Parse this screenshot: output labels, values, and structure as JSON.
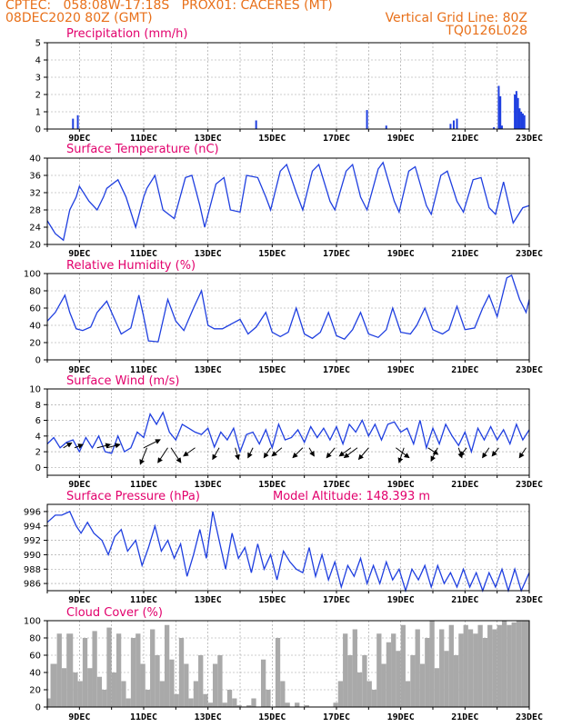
{
  "header": {
    "line1_left": "CPTEC:   058:08W-17:18S   PROX01: CACERES (MT)",
    "line2_left": "08DEC2020 80Z (GMT)",
    "line2_right": "Vertical Grid Line: 80Z",
    "line3_right": "TQ0126L028",
    "color": "#e8701a"
  },
  "model_altitude": "Model Altitude: 148.393 m",
  "colors": {
    "title": "#e2006c",
    "line": "#1f3fe0",
    "bar": "#1f3fe0",
    "cloud": "#a9a9a9",
    "arrow": "#000000",
    "grid": "#999999"
  },
  "x_axis": {
    "start_day": 8.0,
    "end_day": 23.0,
    "tick_days": [
      9,
      11,
      13,
      15,
      17,
      19,
      21,
      23
    ],
    "tick_labels": [
      "9DEC",
      "11DEC",
      "13DEC",
      "15DEC",
      "17DEC",
      "19DEC",
      "21DEC",
      "23DEC"
    ]
  },
  "chart_data": [
    {
      "id": "precip",
      "type": "bar",
      "title": "Precipitation (mm/h)",
      "ylim": [
        0,
        5
      ],
      "yticks": [
        0,
        1,
        2,
        3,
        4,
        5
      ],
      "grid": true,
      "x": [
        8.8,
        8.95,
        14.5,
        17.95,
        18.55,
        20.55,
        20.65,
        20.75,
        21.9,
        22.05,
        22.1,
        22.15,
        22.55,
        22.6,
        22.65,
        22.7,
        22.75,
        22.8,
        22.85
      ],
      "values": [
        0.6,
        0.8,
        0.5,
        1.1,
        0.2,
        0.3,
        0.5,
        0.6,
        0.1,
        2.5,
        1.9,
        0.2,
        2.0,
        2.2,
        1.8,
        1.2,
        1.0,
        0.9,
        0.8
      ]
    },
    {
      "id": "temp",
      "type": "line",
      "title": "Surface Temperature (nC)",
      "ylim": [
        20,
        40
      ],
      "yticks": [
        20,
        24,
        28,
        32,
        36,
        40
      ],
      "grid": true,
      "x": [
        8.0,
        8.25,
        8.5,
        8.7,
        8.9,
        9.0,
        9.3,
        9.55,
        9.75,
        9.85,
        10.2,
        10.45,
        10.75,
        11.0,
        11.1,
        11.35,
        11.6,
        11.95,
        12.3,
        12.5,
        12.75,
        12.9,
        13.25,
        13.5,
        13.7,
        14.0,
        14.2,
        14.55,
        14.8,
        14.95,
        15.25,
        15.45,
        15.75,
        15.95,
        16.25,
        16.45,
        16.8,
        16.95,
        17.3,
        17.5,
        17.75,
        17.95,
        18.3,
        18.45,
        18.8,
        18.95,
        19.25,
        19.45,
        19.8,
        19.95,
        20.25,
        20.45,
        20.75,
        20.95,
        21.25,
        21.5,
        21.75,
        21.95,
        22.2,
        22.5,
        22.8,
        23.0
      ],
      "values": [
        25.5,
        22.5,
        21.0,
        28.0,
        31.0,
        33.5,
        30.0,
        28.0,
        31.0,
        33.0,
        35.0,
        31.0,
        24.0,
        31.0,
        33.0,
        36.0,
        28.0,
        26.0,
        35.5,
        36.0,
        29.0,
        24.0,
        34.0,
        35.5,
        28.0,
        27.5,
        36.0,
        35.5,
        31.0,
        28.0,
        37.0,
        38.5,
        32.0,
        28.0,
        37.0,
        38.5,
        30.0,
        28.0,
        37.0,
        38.5,
        31.0,
        28.0,
        37.5,
        39.0,
        30.0,
        27.5,
        37.0,
        38.0,
        29.0,
        27.0,
        36.0,
        37.0,
        30.0,
        27.5,
        35.0,
        35.5,
        28.5,
        27.0,
        34.5,
        25.0,
        28.5,
        29.0
      ]
    },
    {
      "id": "rh",
      "type": "line",
      "title": "Relative Humidity (%)",
      "ylim": [
        0,
        100
      ],
      "yticks": [
        0,
        20,
        40,
        60,
        80,
        100
      ],
      "grid": true,
      "x": [
        8.0,
        8.25,
        8.55,
        8.7,
        8.9,
        9.1,
        9.35,
        9.55,
        9.85,
        10.0,
        10.3,
        10.6,
        10.85,
        11.0,
        11.15,
        11.45,
        11.75,
        12.0,
        12.25,
        12.55,
        12.8,
        13.0,
        13.2,
        13.45,
        13.75,
        14.0,
        14.25,
        14.5,
        14.8,
        15.0,
        15.25,
        15.5,
        15.75,
        16.0,
        16.25,
        16.5,
        16.75,
        17.0,
        17.25,
        17.5,
        17.75,
        18.0,
        18.3,
        18.55,
        18.75,
        19.0,
        19.3,
        19.5,
        19.75,
        20.0,
        20.3,
        20.5,
        20.75,
        21.0,
        21.3,
        21.55,
        21.75,
        22.0,
        22.3,
        22.45,
        22.7,
        22.9,
        23.0
      ],
      "values": [
        45.0,
        55.0,
        75.0,
        55.0,
        36.0,
        34.0,
        38.0,
        55.0,
        68.0,
        55.0,
        30.0,
        37.0,
        75.0,
        50.0,
        22.0,
        21.0,
        70.0,
        45.0,
        34.0,
        60.0,
        80.0,
        40.0,
        36.0,
        36.0,
        42.0,
        47.0,
        30.0,
        38.0,
        55.0,
        32.0,
        27.0,
        32.0,
        60.0,
        30.0,
        25.0,
        32.0,
        55.0,
        28.0,
        24.0,
        35.0,
        55.0,
        30.0,
        26.0,
        35.0,
        60.0,
        32.0,
        30.0,
        40.0,
        60.0,
        35.0,
        30.0,
        35.0,
        62.0,
        35.0,
        37.0,
        60.0,
        75.0,
        50.0,
        95.0,
        98.0,
        70.0,
        55.0,
        70.0
      ]
    },
    {
      "id": "wind",
      "type": "line",
      "title": "Surface Wind (m/s)",
      "ylim": [
        -1,
        10
      ],
      "yticks": [
        0,
        2,
        4,
        6,
        8,
        10
      ],
      "grid": true,
      "x": [
        8.0,
        8.2,
        8.4,
        8.6,
        8.8,
        9.0,
        9.2,
        9.4,
        9.6,
        9.8,
        10.0,
        10.2,
        10.4,
        10.6,
        10.8,
        11.0,
        11.2,
        11.4,
        11.6,
        11.8,
        12.0,
        12.2,
        12.4,
        12.6,
        12.8,
        13.0,
        13.2,
        13.4,
        13.6,
        13.8,
        14.0,
        14.2,
        14.4,
        14.6,
        14.8,
        15.0,
        15.2,
        15.4,
        15.6,
        15.8,
        16.0,
        16.2,
        16.4,
        16.6,
        16.8,
        17.0,
        17.2,
        17.4,
        17.6,
        17.8,
        18.0,
        18.2,
        18.4,
        18.6,
        18.8,
        19.0,
        19.2,
        19.4,
        19.6,
        19.8,
        20.0,
        20.2,
        20.4,
        20.6,
        20.8,
        21.0,
        21.2,
        21.4,
        21.6,
        21.8,
        22.0,
        22.2,
        22.4,
        22.6,
        22.8,
        23.0
      ],
      "values": [
        3.0,
        3.8,
        2.5,
        3.2,
        3.5,
        2.0,
        3.8,
        2.5,
        4.0,
        2.0,
        1.8,
        4.0,
        2.0,
        2.5,
        4.5,
        3.8,
        6.8,
        5.5,
        7.0,
        4.5,
        3.5,
        5.5,
        5.0,
        4.5,
        4.2,
        5.0,
        2.6,
        4.5,
        3.5,
        5.0,
        2.0,
        4.2,
        4.5,
        3.0,
        4.8,
        2.5,
        5.5,
        3.5,
        3.8,
        4.8,
        3.2,
        5.2,
        3.8,
        5.0,
        3.5,
        5.2,
        3.0,
        5.5,
        4.5,
        6.0,
        4.0,
        5.5,
        3.5,
        5.5,
        5.8,
        4.5,
        5.0,
        3.0,
        6.0,
        2.5,
        5.0,
        3.0,
        5.5,
        4.0,
        2.8,
        4.5,
        2.0,
        5.0,
        3.5,
        5.2,
        3.5,
        4.8,
        3.0,
        5.5,
        3.5,
        4.8
      ]
    },
    {
      "id": "pressure",
      "type": "line",
      "title": "Surface Pressure (hPa)",
      "ylim": [
        985,
        997
      ],
      "yticks": [
        986,
        988,
        990,
        992,
        994,
        996
      ],
      "grid": true,
      "x": [
        8.0,
        8.25,
        8.45,
        8.7,
        8.9,
        9.05,
        9.25,
        9.45,
        9.7,
        9.9,
        10.1,
        10.3,
        10.5,
        10.75,
        10.95,
        11.15,
        11.35,
        11.55,
        11.75,
        11.95,
        12.15,
        12.35,
        12.55,
        12.75,
        12.95,
        13.15,
        13.35,
        13.55,
        13.75,
        13.95,
        14.15,
        14.35,
        14.55,
        14.75,
        14.95,
        15.15,
        15.35,
        15.55,
        15.75,
        15.95,
        16.15,
        16.35,
        16.55,
        16.75,
        16.95,
        17.15,
        17.35,
        17.55,
        17.75,
        17.95,
        18.15,
        18.35,
        18.55,
        18.75,
        18.95,
        19.15,
        19.35,
        19.55,
        19.75,
        19.95,
        20.15,
        20.35,
        20.55,
        20.75,
        20.95,
        21.15,
        21.35,
        21.55,
        21.75,
        21.95,
        22.15,
        22.35,
        22.55,
        22.75,
        22.95,
        23.0
      ],
      "values": [
        994.5,
        995.5,
        995.5,
        996.0,
        994.0,
        993.0,
        994.5,
        993.0,
        992.0,
        990.0,
        992.5,
        993.5,
        990.5,
        992.0,
        988.5,
        991.0,
        994.0,
        990.5,
        992.0,
        989.5,
        991.5,
        987.0,
        990.0,
        993.5,
        989.5,
        996.0,
        992.0,
        988.0,
        993.0,
        989.5,
        991.0,
        987.5,
        991.5,
        988.0,
        990.0,
        986.5,
        990.5,
        989.0,
        988.0,
        987.5,
        991.0,
        987.0,
        990.0,
        986.5,
        989.0,
        985.5,
        988.5,
        987.0,
        989.5,
        986.0,
        988.5,
        986.0,
        989.0,
        986.5,
        988.0,
        985.0,
        988.0,
        986.5,
        988.5,
        985.5,
        988.5,
        986.0,
        987.5,
        985.5,
        988.0,
        985.5,
        987.5,
        985.0,
        987.5,
        985.5,
        988.0,
        985.0,
        988.0,
        985.0,
        987.0,
        987.5
      ]
    },
    {
      "id": "cloud",
      "type": "area",
      "title": "Cloud Cover (%)",
      "ylim": [
        0,
        100
      ],
      "yticks": [
        0,
        20,
        40,
        60,
        80,
        100
      ],
      "grid": true,
      "x": [
        8.0,
        8.1,
        8.3,
        8.45,
        8.6,
        8.8,
        8.95,
        9.1,
        9.25,
        9.4,
        9.55,
        9.7,
        9.85,
        10.0,
        10.15,
        10.3,
        10.45,
        10.6,
        10.75,
        10.9,
        11.05,
        11.2,
        11.35,
        11.5,
        11.65,
        11.8,
        11.95,
        12.1,
        12.25,
        12.4,
        12.55,
        12.7,
        12.85,
        13.0,
        13.15,
        13.3,
        13.45,
        13.6,
        13.75,
        13.9,
        14.05,
        14.2,
        14.35,
        14.5,
        14.65,
        14.8,
        14.95,
        15.1,
        15.25,
        15.4,
        15.55,
        15.7,
        15.85,
        16.0,
        16.15,
        16.3,
        16.45,
        16.6,
        16.75,
        16.9,
        17.05,
        17.2,
        17.35,
        17.5,
        17.65,
        17.8,
        17.95,
        18.1,
        18.25,
        18.4,
        18.55,
        18.7,
        18.85,
        19.0,
        19.15,
        19.3,
        19.45,
        19.6,
        19.75,
        19.9,
        20.05,
        20.2,
        20.35,
        20.5,
        20.65,
        20.8,
        20.95,
        21.1,
        21.25,
        21.4,
        21.55,
        21.7,
        21.85,
        22.0,
        22.15,
        22.3,
        22.45,
        22.6,
        22.75,
        22.9,
        23.0
      ],
      "values": [
        10,
        50,
        85,
        45,
        85,
        40,
        30,
        80,
        45,
        88,
        35,
        20,
        92,
        40,
        85,
        30,
        10,
        80,
        85,
        50,
        20,
        90,
        60,
        30,
        95,
        55,
        15,
        80,
        50,
        10,
        30,
        60,
        15,
        5,
        50,
        60,
        5,
        20,
        10,
        2,
        0,
        2,
        10,
        0,
        55,
        20,
        0,
        80,
        30,
        5,
        0,
        5,
        0,
        2,
        0,
        0,
        0,
        0,
        0,
        5,
        30,
        85,
        60,
        90,
        40,
        60,
        30,
        20,
        85,
        50,
        75,
        85,
        65,
        95,
        30,
        60,
        90,
        50,
        80,
        100,
        45,
        90,
        65,
        95,
        60,
        85,
        95,
        90,
        85,
        95,
        80,
        95,
        90,
        95,
        100,
        95,
        98,
        100,
        100,
        100,
        100
      ]
    }
  ],
  "wind_vectors": {
    "days": [
      8.5,
      8.85,
      9.55,
      9.85,
      11.0,
      11.1,
      11.75,
      11.85,
      12.6,
      13.35,
      13.85,
      14.4,
      14.95,
      15.3,
      15.95,
      16.15,
      16.95,
      17.45,
      17.65,
      18.0,
      18.85,
      19.1,
      19.85,
      20.15,
      20.8,
      21.05,
      21.75,
      22.05,
      22.9
    ],
    "dx": [
      0.5,
      0.5,
      0.8,
      0.8,
      1.0,
      -0.4,
      -0.6,
      0.6,
      -0.7,
      -0.4,
      0.2,
      -0.3,
      -0.4,
      -0.6,
      -0.6,
      0.3,
      -0.5,
      -0.7,
      -0.8,
      -0.6,
      0.8,
      -0.3,
      0.6,
      -0.4,
      0.2,
      -0.4,
      -0.4,
      -0.4,
      -0.4
    ],
    "dy": [
      0.3,
      0.2,
      0.2,
      0.2,
      0.5,
      -1.0,
      -0.9,
      -0.9,
      -0.5,
      -0.7,
      -0.7,
      -0.6,
      -0.6,
      -0.5,
      -0.6,
      -0.5,
      -0.6,
      -0.5,
      -0.6,
      -0.7,
      -0.6,
      -0.9,
      -0.4,
      -0.8,
      -0.6,
      -0.5,
      -0.6,
      -0.5,
      -0.6
    ]
  }
}
